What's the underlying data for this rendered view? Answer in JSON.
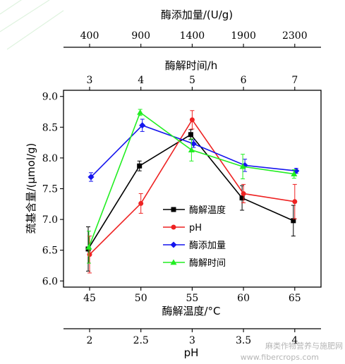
{
  "chart_data": {
    "type": "line",
    "ylabel": "巯基含量/(μmol/g)",
    "ylim": [
      5.9,
      9.1
    ],
    "yticks": [
      "6.0",
      "6.5",
      "7.0",
      "7.5",
      "8.0",
      "8.5",
      "9.0"
    ],
    "axes": {
      "temperature": {
        "label": "酶解温度/°C",
        "ticks": [
          "45",
          "50",
          "55",
          "60",
          "65"
        ]
      },
      "ph": {
        "label": "pH",
        "ticks": [
          "2",
          "2.5",
          "3",
          "3.5",
          "4"
        ]
      },
      "dosage": {
        "label": "酶添加量/(U/g)",
        "ticks": [
          "400",
          "900",
          "1400",
          "1900",
          "2300"
        ]
      },
      "time": {
        "label": "酶解时间/h",
        "ticks": [
          "3",
          "4",
          "5",
          "6",
          "7"
        ]
      }
    },
    "series": [
      {
        "name": "酶解温度",
        "color": "#000000",
        "marker": "square",
        "x": [
          45,
          50,
          55,
          60,
          65
        ],
        "values": [
          6.52,
          7.87,
          8.38,
          7.35,
          6.98
        ],
        "errors": [
          0.36,
          0.08,
          0.08,
          0.2,
          0.25
        ]
      },
      {
        "name": "pH",
        "color": "#ee2222",
        "marker": "circle",
        "x": [
          45,
          50,
          55,
          60,
          65
        ],
        "values": [
          6.43,
          7.26,
          8.62,
          7.42,
          7.29
        ],
        "errors": [
          0.3,
          0.16,
          0.15,
          0.15,
          0.28
        ]
      },
      {
        "name": "酶添加量",
        "color": "#1515ee",
        "marker": "diamond",
        "x": [
          45,
          50,
          55,
          60,
          65
        ],
        "values": [
          7.69,
          8.53,
          8.23,
          7.88,
          7.79
        ],
        "errors": [
          0.07,
          0.1,
          0.06,
          0.1,
          0.04
        ]
      },
      {
        "name": "酶解时间",
        "color": "#22ee22",
        "marker": "triangle",
        "x": [
          45,
          50,
          55,
          60,
          65
        ],
        "values": [
          6.55,
          8.74,
          8.13,
          7.86,
          7.74
        ],
        "errors": [
          0.26,
          0.05,
          0.18,
          0.2,
          0.07
        ]
      }
    ],
    "legend_position": "inside, lower-center"
  },
  "watermark": "麻类作物营养与施肥网",
  "watermark_url": "www.fibercrops.com"
}
